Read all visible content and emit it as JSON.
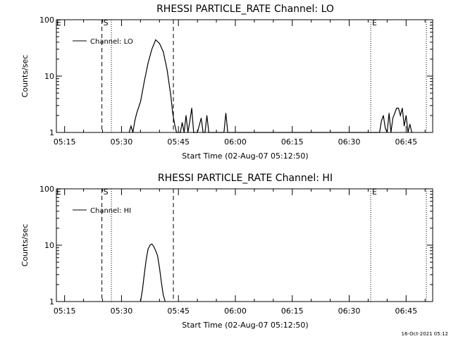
{
  "footer": {
    "timestamp": "16-Oct-2021 05:12"
  },
  "chart_data": [
    {
      "type": "line",
      "title": "RHESSI PARTICLE_RATE Channel: LO",
      "xlabel": "Start Time (02-Aug-07 05:12:50)",
      "ylabel": "Counts/sec",
      "yscale": "log",
      "xlim": [
        "05:12:50",
        "06:52:00"
      ],
      "ylim": [
        1,
        100
      ],
      "x_ticks": [
        "05:15",
        "05:30",
        "05:45",
        "06:00",
        "06:15",
        "06:30",
        "06:45"
      ],
      "y_ticks": [
        "1",
        "10",
        "100"
      ],
      "legend": {
        "placement": "top-left"
      },
      "series": [
        {
          "name": "Channel: LO",
          "color": "#000000",
          "points": [
            [
              "05:32:00",
              1
            ],
            [
              "05:32:30",
              1.3
            ],
            [
              "05:33:00",
              1
            ],
            [
              "05:33:30",
              1.6
            ],
            [
              "05:34:00",
              2.2
            ],
            [
              "05:35:00",
              3.5
            ],
            [
              "05:36:00",
              8
            ],
            [
              "05:37:00",
              17
            ],
            [
              "05:38:00",
              30
            ],
            [
              "05:39:00",
              44
            ],
            [
              "05:40:00",
              38
            ],
            [
              "05:41:00",
              27
            ],
            [
              "05:42:00",
              13
            ],
            [
              "05:43:00",
              4.5
            ],
            [
              "05:43:30",
              2.2
            ],
            [
              "05:44:00",
              1.4
            ],
            [
              "05:44:30",
              1
            ],
            [
              "05:45:30",
              1
            ],
            [
              "05:46:00",
              1.5
            ],
            [
              "05:46:30",
              1
            ],
            [
              "05:47:00",
              2
            ],
            [
              "05:47:30",
              1
            ],
            [
              "05:48:00",
              1.6
            ],
            [
              "05:48:30",
              2.7
            ],
            [
              "05:49:00",
              1
            ],
            [
              "05:50:00",
              1
            ],
            [
              "05:51:00",
              1.8
            ],
            [
              "05:51:30",
              1
            ],
            [
              "05:52:00",
              1
            ],
            [
              "05:52:30",
              2
            ],
            [
              "05:53:00",
              1
            ],
            [
              "05:57:00",
              1
            ],
            [
              "05:57:30",
              2.2
            ],
            [
              "05:58:00",
              1
            ],
            [
              "06:38:00",
              1
            ],
            [
              "06:38:30",
              1.6
            ],
            [
              "06:39:00",
              2
            ],
            [
              "06:39:30",
              1.2
            ],
            [
              "06:40:00",
              1
            ],
            [
              "06:40:30",
              2.2
            ],
            [
              "06:41:00",
              1
            ],
            [
              "06:41:30",
              1.8
            ],
            [
              "06:42:00",
              2.2
            ],
            [
              "06:42:30",
              2.7
            ],
            [
              "06:43:00",
              2.7
            ],
            [
              "06:43:30",
              2
            ],
            [
              "06:44:00",
              2.7
            ],
            [
              "06:44:30",
              1.3
            ],
            [
              "06:45:00",
              2
            ],
            [
              "06:45:30",
              1
            ],
            [
              "06:46:00",
              1.4
            ],
            [
              "06:46:30",
              1
            ]
          ]
        }
      ],
      "event_lines": [
        {
          "time": "05:24:50",
          "style": "dashed",
          "label": "S"
        },
        {
          "time": "05:27:20",
          "style": "dotted",
          "label": ""
        },
        {
          "time": "05:43:40",
          "style": "dashed",
          "label": ""
        },
        {
          "time": "06:35:40",
          "style": "dotted",
          "label": "E"
        },
        {
          "time": "06:50:20",
          "style": "dotted",
          "label": ""
        }
      ],
      "corner_label": "E"
    },
    {
      "type": "line",
      "title": "RHESSI PARTICLE_RATE Channel: HI",
      "xlabel": "Start Time (02-Aug-07 05:12:50)",
      "ylabel": "Counts/sec",
      "yscale": "log",
      "xlim": [
        "05:12:50",
        "06:52:00"
      ],
      "ylim": [
        1,
        100
      ],
      "x_ticks": [
        "05:15",
        "05:30",
        "05:45",
        "06:00",
        "06:15",
        "06:30",
        "06:45"
      ],
      "y_ticks": [
        "1",
        "10",
        "100"
      ],
      "legend": {
        "placement": "top-left"
      },
      "series": [
        {
          "name": "Channel: HI",
          "color": "#000000",
          "points": [
            [
              "05:35:00",
              1
            ],
            [
              "05:35:30",
              1.6
            ],
            [
              "05:36:00",
              3
            ],
            [
              "05:36:30",
              5.5
            ],
            [
              "05:37:00",
              8.5
            ],
            [
              "05:37:30",
              10
            ],
            [
              "05:38:00",
              10.5
            ],
            [
              "05:38:30",
              9.5
            ],
            [
              "05:39:00",
              8
            ],
            [
              "05:39:30",
              6.5
            ],
            [
              "05:40:00",
              4
            ],
            [
              "05:40:30",
              2.2
            ],
            [
              "05:41:00",
              1.3
            ],
            [
              "05:41:30",
              1
            ]
          ]
        }
      ],
      "event_lines": [
        {
          "time": "05:24:50",
          "style": "dashed",
          "label": "S"
        },
        {
          "time": "05:27:20",
          "style": "dotted",
          "label": ""
        },
        {
          "time": "05:43:40",
          "style": "dashed",
          "label": ""
        },
        {
          "time": "06:35:40",
          "style": "dotted",
          "label": "E"
        },
        {
          "time": "06:50:20",
          "style": "dotted",
          "label": ""
        }
      ],
      "corner_label": "E"
    }
  ]
}
